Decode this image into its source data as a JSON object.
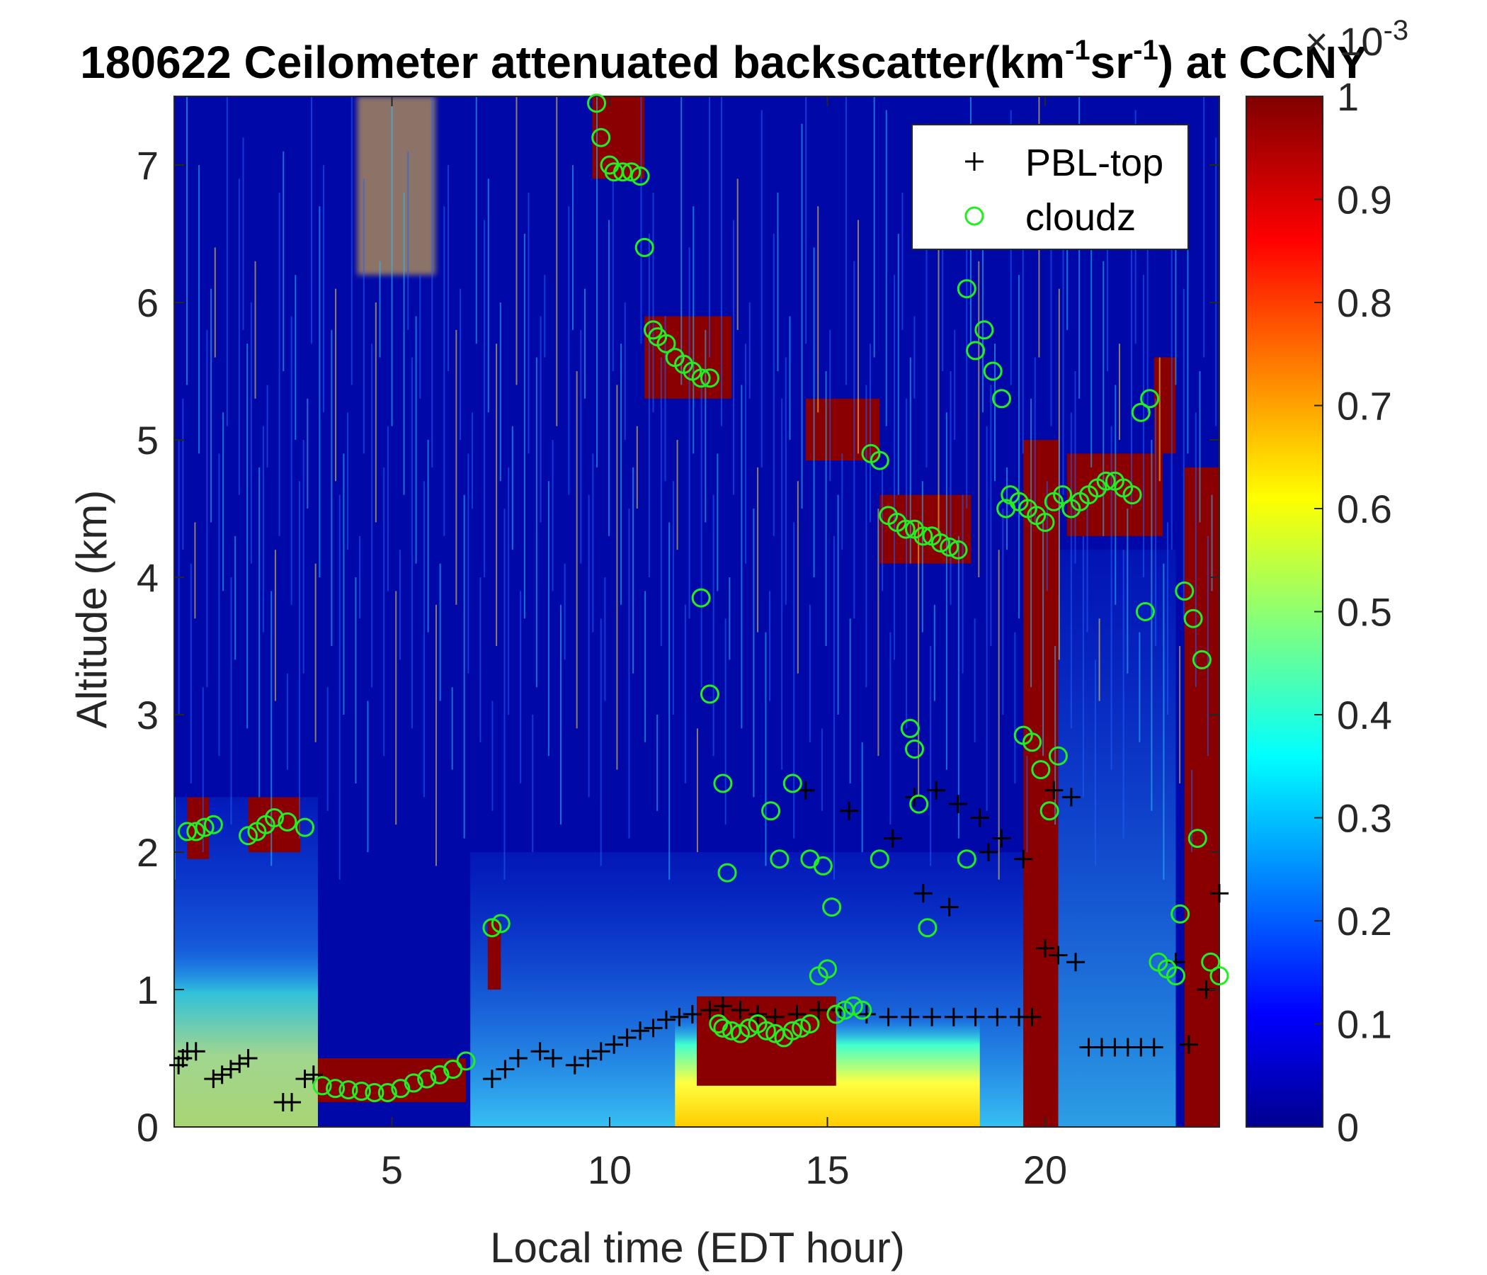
{
  "chart_data": {
    "type": "heatmap",
    "title": "180622 Ceilometer attenuated backscatter(km-1sr-1) at CCNY",
    "title_parts": {
      "main": "180622 Ceilometer attenuated backscatter(km",
      "sup1": "-1",
      "mid": "sr",
      "sup2": "-1",
      "tail": ") at CCNY"
    },
    "xlabel": "Local time (EDT hour)",
    "ylabel": "Altitude (km)",
    "xlim": [
      0,
      24
    ],
    "ylim": [
      0,
      7.5
    ],
    "xticks": [
      5,
      10,
      15,
      20
    ],
    "yticks": [
      0,
      1,
      2,
      3,
      4,
      5,
      6,
      7
    ],
    "colorbar": {
      "colormap": "jet",
      "clim": [
        0,
        1
      ],
      "ticks": [
        0,
        0.1,
        0.2,
        0.3,
        0.4,
        0.5,
        0.6,
        0.7,
        0.8,
        0.9,
        1
      ],
      "exponent_label": "× 10",
      "exponent": "-3"
    },
    "legend": {
      "position": "top-right",
      "entries": [
        {
          "name": "PBL-top",
          "marker": "+",
          "color": "#000000"
        },
        {
          "name": "cloudz",
          "marker": "o",
          "color": "#22ee22"
        }
      ]
    },
    "features": {
      "low_cloud_layer": [
        [
          0.4,
          2.15
        ],
        [
          0.6,
          2.12
        ],
        [
          1.8,
          2.2
        ],
        [
          2.5,
          2.25
        ]
      ],
      "cloud_bases": [
        [
          3.5,
          0.3
        ],
        [
          4.5,
          0.28
        ],
        [
          6.5,
          0.45
        ],
        [
          13,
          0.75
        ],
        [
          16,
          0.8
        ]
      ],
      "upper_cloud": [
        [
          10,
          7.1
        ],
        [
          11,
          5.7
        ],
        [
          12.5,
          5.4
        ],
        [
          16.5,
          4.4
        ],
        [
          18,
          4.2
        ],
        [
          21,
          4.6
        ]
      ]
    },
    "series": [
      {
        "name": "PBL-top",
        "x": [
          0.1,
          0.2,
          0.3,
          0.5,
          0.9,
          1.1,
          1.3,
          1.5,
          1.7,
          2.5,
          2.7,
          3.0,
          3.2,
          7.3,
          7.6,
          7.9,
          8.4,
          8.7,
          9.2,
          9.5,
          9.8,
          10.1,
          10.4,
          10.7,
          11.0,
          11.3,
          11.6,
          11.9,
          12.3,
          12.6,
          13.0,
          13.4,
          13.8,
          14.3,
          14.8,
          15.3,
          15.9,
          16.4,
          16.9,
          17.4,
          17.9,
          18.4,
          18.9,
          19.4,
          19.7,
          20.0,
          20.3,
          20.7,
          21.0,
          21.3,
          21.6,
          21.9,
          22.2,
          22.5,
          23.0,
          23.3,
          23.7,
          24.0,
          14.5,
          15.5,
          16.5,
          17.0,
          17.5,
          18.0,
          18.5,
          19.0,
          17.2,
          17.8,
          18.7,
          19.5,
          20.2,
          20.6
        ],
        "y": [
          0.45,
          0.5,
          0.55,
          0.55,
          0.35,
          0.38,
          0.42,
          0.46,
          0.5,
          0.18,
          0.18,
          0.35,
          0.38,
          0.35,
          0.42,
          0.5,
          0.55,
          0.5,
          0.45,
          0.5,
          0.55,
          0.6,
          0.65,
          0.7,
          0.72,
          0.78,
          0.8,
          0.82,
          0.85,
          0.88,
          0.85,
          0.82,
          0.8,
          0.82,
          0.85,
          0.85,
          0.82,
          0.8,
          0.8,
          0.8,
          0.8,
          0.8,
          0.8,
          0.8,
          0.8,
          1.3,
          1.25,
          1.2,
          0.58,
          0.58,
          0.58,
          0.58,
          0.58,
          0.58,
          1.2,
          0.6,
          1.0,
          1.7,
          2.45,
          2.3,
          2.1,
          2.4,
          2.45,
          2.35,
          2.25,
          2.1,
          1.7,
          1.6,
          2.0,
          1.95,
          2.45,
          2.4
        ]
      },
      {
        "name": "cloudz",
        "x": [
          0.3,
          0.5,
          0.7,
          0.9,
          1.7,
          1.9,
          2.1,
          2.3,
          2.6,
          3.0,
          3.4,
          3.7,
          4.0,
          4.3,
          4.6,
          4.9,
          5.2,
          5.5,
          5.8,
          6.1,
          6.4,
          6.7,
          7.3,
          7.5,
          9.7,
          9.8,
          10.0,
          10.1,
          10.3,
          10.5,
          10.7,
          10.8,
          11.0,
          11.1,
          11.3,
          11.5,
          11.7,
          11.9,
          12.1,
          12.3,
          12.5,
          12.6,
          12.8,
          13.0,
          13.2,
          13.4,
          13.6,
          13.8,
          14.0,
          14.2,
          14.4,
          14.6,
          14.8,
          15.0,
          15.2,
          15.4,
          15.6,
          15.8,
          16.0,
          16.2,
          16.4,
          16.6,
          16.8,
          17.0,
          17.2,
          17.4,
          17.6,
          17.8,
          18.0,
          18.2,
          18.4,
          18.6,
          18.8,
          19.0,
          19.2,
          19.4,
          19.6,
          19.8,
          20.0,
          20.2,
          20.4,
          20.6,
          20.8,
          21.0,
          21.2,
          21.4,
          21.6,
          21.8,
          22.0,
          22.2,
          22.4,
          22.6,
          22.8,
          23.0,
          23.2,
          23.4,
          23.6,
          23.8,
          24.0,
          12.1,
          12.3,
          12.6,
          12.7,
          13.7,
          13.9,
          14.2,
          14.6,
          14.9,
          15.1,
          16.2,
          16.9,
          17.0,
          17.1,
          17.3,
          18.2,
          19.1,
          19.5,
          19.7,
          19.9,
          20.1,
          20.3,
          22.3,
          23.1,
          23.5
        ],
        "y": [
          2.15,
          2.15,
          2.18,
          2.2,
          2.12,
          2.15,
          2.2,
          2.25,
          2.22,
          2.18,
          0.3,
          0.28,
          0.27,
          0.26,
          0.25,
          0.25,
          0.28,
          0.32,
          0.35,
          0.38,
          0.42,
          0.48,
          1.45,
          1.48,
          7.45,
          7.2,
          7.0,
          6.95,
          6.95,
          6.95,
          6.92,
          6.4,
          5.8,
          5.75,
          5.7,
          5.6,
          5.55,
          5.5,
          5.45,
          5.45,
          0.75,
          0.72,
          0.7,
          0.68,
          0.72,
          0.75,
          0.7,
          0.68,
          0.65,
          0.7,
          0.72,
          0.75,
          1.1,
          1.15,
          0.82,
          0.85,
          0.88,
          0.85,
          4.9,
          4.85,
          4.45,
          4.4,
          4.35,
          4.35,
          4.3,
          4.3,
          4.25,
          4.22,
          4.2,
          6.1,
          5.65,
          5.8,
          5.5,
          5.3,
          4.6,
          4.55,
          4.5,
          4.45,
          4.4,
          4.55,
          4.6,
          4.5,
          4.55,
          4.6,
          4.65,
          4.7,
          4.7,
          4.65,
          4.6,
          5.2,
          5.3,
          1.2,
          1.15,
          1.1,
          3.9,
          3.7,
          3.4,
          1.2,
          1.1,
          3.85,
          3.15,
          2.5,
          1.85,
          2.3,
          1.95,
          2.5,
          1.95,
          1.9,
          1.6,
          1.95,
          2.9,
          2.75,
          2.35,
          1.45,
          1.95,
          4.5,
          2.85,
          2.8,
          2.6,
          2.3,
          2.7,
          3.75,
          1.55,
          2.1
        ]
      }
    ]
  }
}
